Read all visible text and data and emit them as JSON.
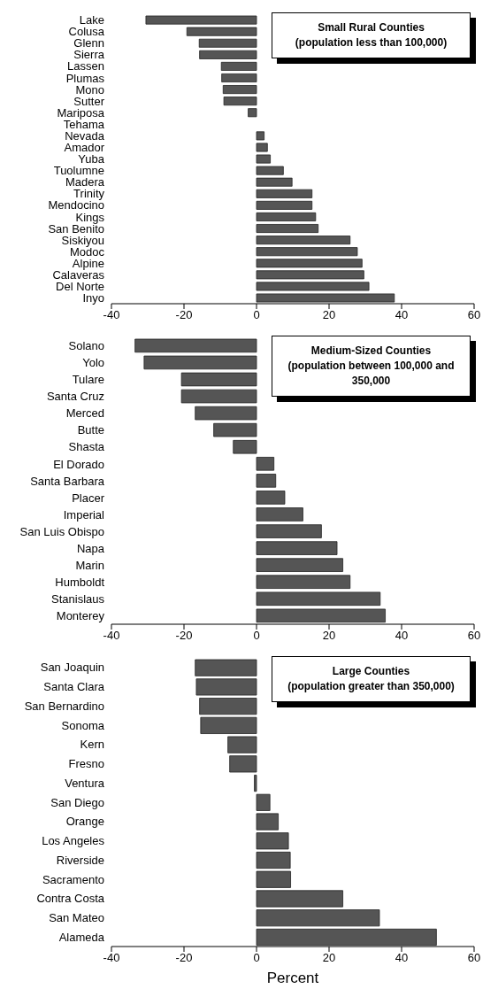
{
  "chart_data": [
    {
      "type": "bar",
      "orientation": "horizontal",
      "title": "Small Rural Counties",
      "subtitle": "(population less than 100,000)",
      "categories": [
        "Lake",
        "Colusa",
        "Glenn",
        "Sierra",
        "Lassen",
        "Plumas",
        "Mono",
        "Sutter",
        "Mariposa",
        "Tehama",
        "Nevada",
        "Amador",
        "Yuba",
        "Tuolumne",
        "Madera",
        "Trinity",
        "Mendocino",
        "Kings",
        "San Benito",
        "Siskiyou",
        "Modoc",
        "Alpine",
        "Calaveras",
        "Del Norte",
        "Inyo"
      ],
      "values": [
        -30.5,
        -19.2,
        -15.8,
        -15.7,
        -9.7,
        -9.6,
        -9.2,
        -9.0,
        -2.3,
        0,
        2.1,
        3.0,
        3.8,
        7.4,
        9.8,
        15.3,
        15.3,
        16.3,
        17.0,
        25.8,
        27.8,
        29.1,
        29.6,
        31.0,
        38.0
      ],
      "color": "#555555",
      "xlim": [
        -40,
        60
      ],
      "xticks": [
        -40,
        -20,
        0,
        20,
        40,
        60
      ]
    },
    {
      "type": "bar",
      "orientation": "horizontal",
      "title": "Medium-Sized Counties",
      "subtitle": "(population between 100,000 and 350,000",
      "categories": [
        "Solano",
        "Yolo",
        "Tulare",
        "Santa Cruz",
        "Merced",
        "Butte",
        "Shasta",
        "El Dorado",
        "Santa Barbara",
        "Placer",
        "Imperial",
        "San Luis Obispo",
        "Napa",
        "Marin",
        "Humboldt",
        "Stanislaus",
        "Monterey"
      ],
      "values": [
        -33.5,
        -31.0,
        -20.7,
        -20.7,
        -16.9,
        -11.8,
        -6.4,
        4.8,
        5.3,
        7.8,
        12.8,
        17.9,
        22.2,
        23.8,
        25.8,
        34.1,
        35.5
      ],
      "color": "#555555",
      "xlim": [
        -40,
        60
      ],
      "xticks": [
        -40,
        -20,
        0,
        20,
        40,
        60
      ]
    },
    {
      "type": "bar",
      "orientation": "horizontal",
      "title": "Large Counties",
      "subtitle": "(population greater than 350,000)",
      "xlabel": "Percent",
      "categories": [
        "San Joaquin",
        "Santa Clara",
        "San Bernardino",
        "Sonoma",
        "Kern",
        "Fresno",
        "Ventura",
        "San Diego",
        "Orange",
        "Los Angeles",
        "Riverside",
        "Sacramento",
        "Contra Costa",
        "San Mateo",
        "Alameda"
      ],
      "values": [
        -16.9,
        -16.6,
        -15.7,
        -15.4,
        -7.9,
        -7.4,
        -0.6,
        3.7,
        6.0,
        8.8,
        9.3,
        9.4,
        23.8,
        33.9,
        49.6
      ],
      "color": "#555555",
      "xlim": [
        -40,
        60
      ],
      "xticks": [
        -40,
        -20,
        0,
        20,
        40,
        60
      ]
    }
  ]
}
